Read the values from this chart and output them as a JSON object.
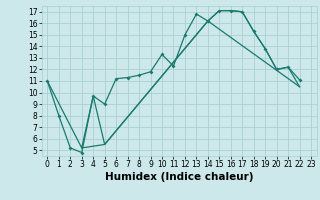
{
  "xlabel": "Humidex (Indice chaleur)",
  "bg_color": "#cce8ea",
  "grid_color": "#aacfd4",
  "line_color": "#1a7a6e",
  "xlim": [
    -0.5,
    23.5
  ],
  "ylim": [
    4.5,
    17.5
  ],
  "xticks": [
    0,
    1,
    2,
    3,
    4,
    5,
    6,
    7,
    8,
    9,
    10,
    11,
    12,
    13,
    14,
    15,
    16,
    17,
    18,
    19,
    20,
    21,
    22,
    23
  ],
  "yticks": [
    5,
    6,
    7,
    8,
    9,
    10,
    11,
    12,
    13,
    14,
    15,
    16,
    17
  ],
  "line1_x": [
    0,
    1,
    2,
    3,
    4,
    5,
    6,
    7,
    8,
    9,
    10,
    11,
    12,
    13,
    14,
    15,
    16,
    17,
    18,
    19,
    20,
    21,
    22
  ],
  "line1_y": [
    11,
    8.0,
    5.2,
    4.8,
    9.7,
    9.0,
    11.2,
    11.3,
    11.5,
    11.8,
    13.3,
    12.3,
    15.0,
    16.8,
    16.2,
    17.1,
    17.1,
    17.0,
    15.3,
    13.8,
    12.0,
    12.2,
    11.1
  ],
  "line2_x": [
    0,
    3,
    4,
    5,
    14,
    15,
    16,
    17,
    18,
    19,
    20,
    21,
    22
  ],
  "line2_y": [
    11,
    5.2,
    9.7,
    5.5,
    16.2,
    17.1,
    17.1,
    17.0,
    15.3,
    13.8,
    12.0,
    12.2,
    10.5
  ],
  "line3_x": [
    3,
    5,
    14,
    22
  ],
  "line3_y": [
    5.2,
    5.5,
    16.2,
    10.5
  ],
  "tick_fontsize": 5.5,
  "xlabel_fontsize": 7.5
}
